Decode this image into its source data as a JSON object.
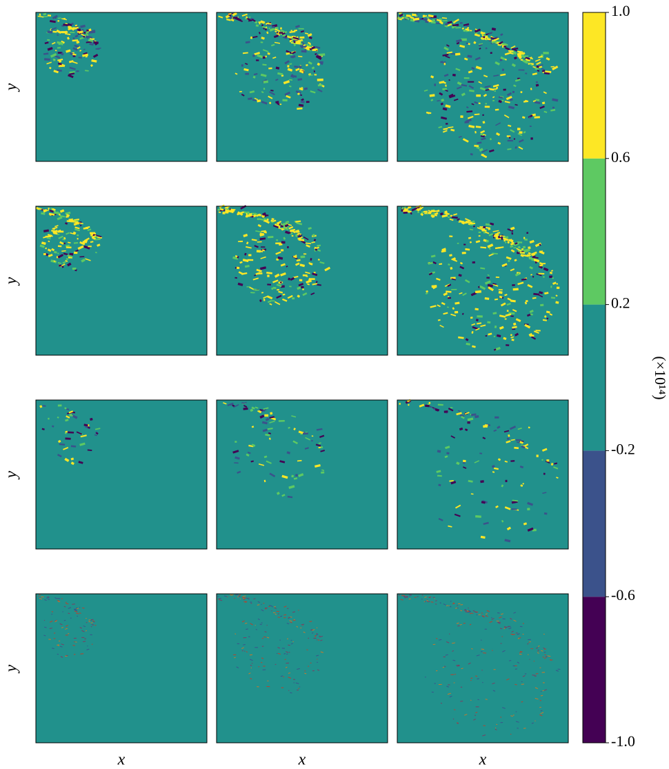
{
  "chart_data": {
    "type": "colorbar",
    "label": "(×10¹⁴)",
    "row_labels": [
      "y",
      "y",
      "y",
      "y"
    ],
    "col_labels": [
      "x",
      "x",
      "x"
    ],
    "colors": [
      "#440154",
      "#3b528b",
      "#21918c",
      "#5ec962",
      "#fde725"
    ],
    "ylim": [
      -1,
      1
    ],
    "yticks": [
      {
        "value": -1,
        "label": "-1.0"
      },
      -0.6,
      -0.2,
      0.2,
      0.6,
      {
        "value": 1,
        "label": "1.0"
      }
    ]
  }
}
